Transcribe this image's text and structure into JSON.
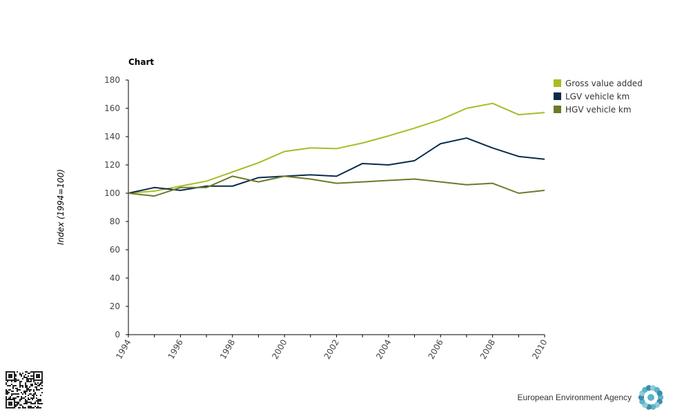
{
  "footer": {
    "agency_name": "European Environment Agency"
  },
  "chart_data": {
    "type": "line",
    "title": "Chart",
    "xlabel": "",
    "ylabel": "Index (1994=100)",
    "x": [
      1994,
      1995,
      1996,
      1997,
      1998,
      1999,
      2000,
      2001,
      2002,
      2003,
      2004,
      2005,
      2006,
      2007,
      2008,
      2009,
      2010
    ],
    "xlim": [
      1994,
      2010
    ],
    "xticks": [
      1994,
      1996,
      1998,
      2000,
      2002,
      2004,
      2006,
      2008,
      2010
    ],
    "ylim": [
      0,
      180
    ],
    "yticks": [
      0,
      20,
      40,
      60,
      80,
      100,
      120,
      140,
      160,
      180
    ],
    "grid": false,
    "legend_position": "top-right",
    "series": [
      {
        "name": "Gross value added",
        "color": "#a9bb24",
        "values": [
          100,
          101.5,
          105,
          108.5,
          115,
          121.5,
          129.5,
          132,
          131.5,
          135.5,
          140.5,
          146,
          152,
          160,
          163.5,
          155.5,
          157
        ]
      },
      {
        "name": "LGV vehicle km",
        "color": "#0a2b4a",
        "values": [
          100,
          104,
          102,
          105,
          105,
          111,
          112,
          113,
          112,
          121,
          120,
          123,
          135,
          139,
          132,
          126,
          124
        ]
      },
      {
        "name": "HGV vehicle km",
        "color": "#6b7a2b",
        "values": [
          100,
          98,
          104,
          104,
          112,
          108,
          112,
          110,
          107,
          108,
          109,
          110,
          108,
          106,
          107,
          100,
          102
        ]
      }
    ]
  }
}
